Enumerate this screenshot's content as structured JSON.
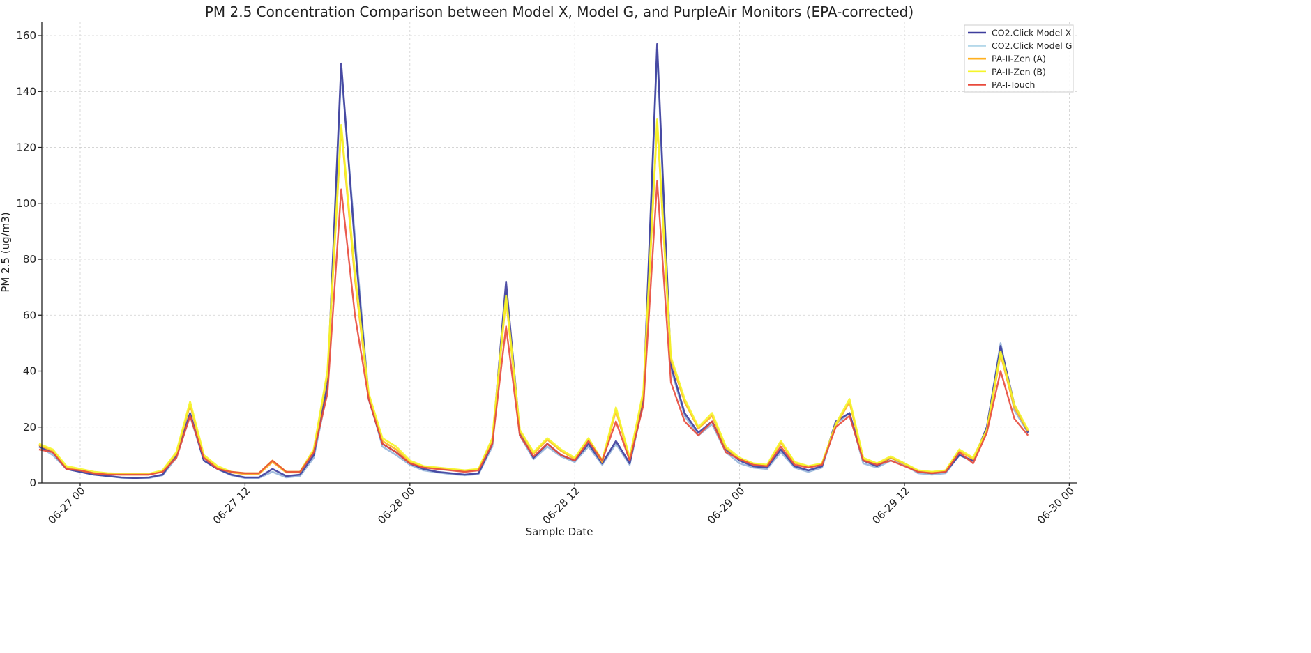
{
  "chart_data": {
    "type": "line",
    "title": "PM 2.5 Concentration Comparison between Model X, Model G, and PurpleAir Monitors (EPA-corrected)",
    "xlabel": "Sample Date",
    "ylabel": "PM 2.5 (ug/m3)",
    "ylim": [
      0,
      165
    ],
    "yticks": [
      0,
      20,
      40,
      60,
      80,
      100,
      120,
      140,
      160
    ],
    "xticks": [
      "06-27 00",
      "06-27 12",
      "06-28 00",
      "06-28 12",
      "06-29 00",
      "06-29 12",
      "06-30 00"
    ],
    "grid": true,
    "legend_position": "top-right",
    "x_start": "06-26 21:00",
    "x_step": "1 hour",
    "series": [
      {
        "name": "CO2.Click Model X",
        "color": "#3d3d9c",
        "values": [
          13,
          11,
          5,
          4,
          3,
          2.5,
          2,
          1.8,
          2,
          3,
          10,
          25,
          8,
          5,
          3,
          2,
          2,
          5,
          2.5,
          3,
          10,
          35,
          150,
          85,
          30,
          14,
          11,
          7,
          5,
          4,
          3.5,
          3,
          3.5,
          14,
          72,
          18,
          9,
          14,
          10,
          8,
          14,
          7,
          15,
          7,
          30,
          157,
          42,
          25,
          18,
          22,
          12,
          8,
          6,
          5.5,
          12,
          6,
          4.5,
          6,
          22,
          25,
          8,
          6,
          9,
          7,
          4,
          3.5,
          4,
          10,
          8,
          20,
          49,
          28,
          18
        ]
      },
      {
        "name": "CO2.Click Model G",
        "color": "#8fb0d8",
        "values": [
          13,
          10,
          5,
          4,
          3,
          2.5,
          1.9,
          1.6,
          1.8,
          2.8,
          9,
          24,
          8,
          5,
          2.8,
          1.8,
          1.8,
          4,
          2,
          2.5,
          9,
          33,
          148,
          88,
          31,
          13,
          10,
          6.5,
          4.5,
          3.8,
          3.2,
          2.8,
          3.2,
          13,
          68,
          17,
          8.5,
          13,
          9.5,
          7.5,
          13,
          6.5,
          14,
          6.5,
          29,
          155,
          41,
          24,
          17,
          21,
          11,
          7,
          5.5,
          5,
          11,
          5.5,
          4,
          5.5,
          21,
          25,
          7,
          5.5,
          8,
          6.5,
          3.5,
          3,
          3.5,
          10,
          7.5,
          20,
          50,
          26,
          18
        ]
      },
      {
        "name": "PA-II-Zen (A)",
        "color": "#ffb020",
        "values": [
          13.5,
          11.5,
          5.5,
          4.5,
          3.5,
          3.2,
          3,
          3,
          3,
          4.2,
          10.5,
          28,
          9.5,
          5.5,
          3.8,
          3.2,
          3.2,
          7.5,
          3.8,
          3.8,
          11.5,
          39,
          127,
          73,
          31,
          15,
          12,
          7.5,
          5.8,
          5.2,
          4.8,
          4.3,
          4.8,
          15.5,
          66,
          18.5,
          10.5,
          15.5,
          11.5,
          8.5,
          15.5,
          7.5,
          26,
          8.5,
          32,
          129,
          44,
          29,
          19.5,
          24,
          12.5,
          8.5,
          6.8,
          6.2,
          14.5,
          7.2,
          5.8,
          6.8,
          20.5,
          29,
          8.5,
          6.8,
          9,
          6.8,
          4.3,
          3.8,
          4.3,
          11.5,
          8.5,
          18.5,
          46,
          27,
          18.5
        ]
      },
      {
        "name": "PA-II-Zen (B)",
        "color": "#f5f52a",
        "values": [
          14,
          12,
          6,
          5,
          4,
          3.5,
          3.3,
          3.2,
          3.3,
          4.5,
          11,
          29,
          10,
          6,
          4,
          3.5,
          3.5,
          8,
          4,
          4,
          12,
          40,
          128,
          75,
          32,
          16,
          13,
          8,
          6,
          5.5,
          5,
          4.5,
          5,
          16,
          67,
          19,
          11,
          16,
          12,
          9,
          16,
          8,
          27,
          9,
          33,
          130,
          45,
          30,
          20,
          25,
          13,
          9,
          7,
          6.5,
          15,
          7.5,
          6,
          7,
          21,
          30,
          9,
          7,
          9.5,
          7,
          4.5,
          4,
          4.5,
          12,
          9,
          19,
          47,
          28,
          19
        ]
      },
      {
        "name": "PA-I-Touch",
        "color": "#e84a3c",
        "values": [
          12,
          11,
          5,
          4.5,
          3.5,
          3,
          3,
          3,
          3,
          4,
          9,
          24,
          9,
          5,
          4,
          3.5,
          3.5,
          8,
          4,
          4,
          11,
          32,
          105,
          60,
          30,
          14,
          11,
          7,
          5.5,
          5,
          4.5,
          4,
          4.5,
          14,
          56,
          17,
          9.5,
          14,
          10,
          8,
          15,
          8,
          22,
          8,
          28,
          108,
          36,
          22,
          17,
          22,
          11,
          8.5,
          6.5,
          6,
          13,
          6.5,
          5.5,
          6.5,
          20,
          24,
          8,
          6.5,
          8,
          6,
          4,
          3.5,
          4,
          11,
          7,
          18,
          40,
          23,
          17
        ]
      }
    ]
  }
}
